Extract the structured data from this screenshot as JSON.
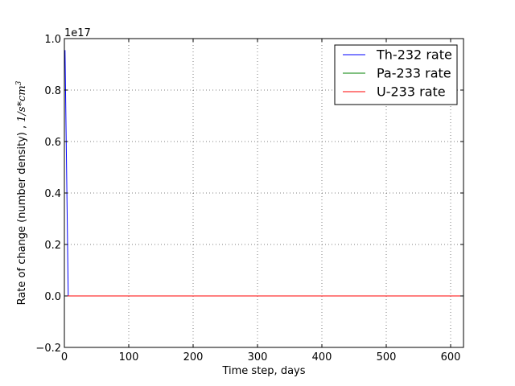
{
  "chart_data": {
    "type": "line",
    "xlabel": "Time step, days",
    "ylabel_text": "Rate of change (number density) , ",
    "ylabel_unit": "1/s*cm",
    "ylabel_unit_sup": "3",
    "y_offset_label": "1e17",
    "xlim": [
      0,
      620
    ],
    "ylim": [
      -0.2,
      1.0
    ],
    "x_ticks": [
      0,
      100,
      200,
      300,
      400,
      500,
      600
    ],
    "x_tick_labels": [
      "0",
      "100",
      "200",
      "300",
      "400",
      "500",
      "600"
    ],
    "y_ticks": [
      -0.2,
      0.0,
      0.2,
      0.4,
      0.6,
      0.8,
      1.0
    ],
    "y_tick_labels": [
      "−0.2",
      "0.0",
      "0.2",
      "0.4",
      "0.6",
      "0.8",
      "1.0"
    ],
    "grid": true,
    "legend_position": "top-right",
    "series": [
      {
        "name": "Th-232 rate",
        "color": "#0000ff",
        "x": [
          1,
          6,
          620
        ],
        "y": [
          0.955,
          0.0,
          0.0
        ]
      },
      {
        "name": "Pa-233 rate",
        "color": "#008000",
        "x": [
          1,
          620
        ],
        "y": [
          0.0,
          0.0
        ]
      },
      {
        "name": "U-233 rate",
        "color": "#ff0000",
        "x": [
          1,
          620
        ],
        "y": [
          0.0,
          0.0
        ]
      }
    ]
  }
}
